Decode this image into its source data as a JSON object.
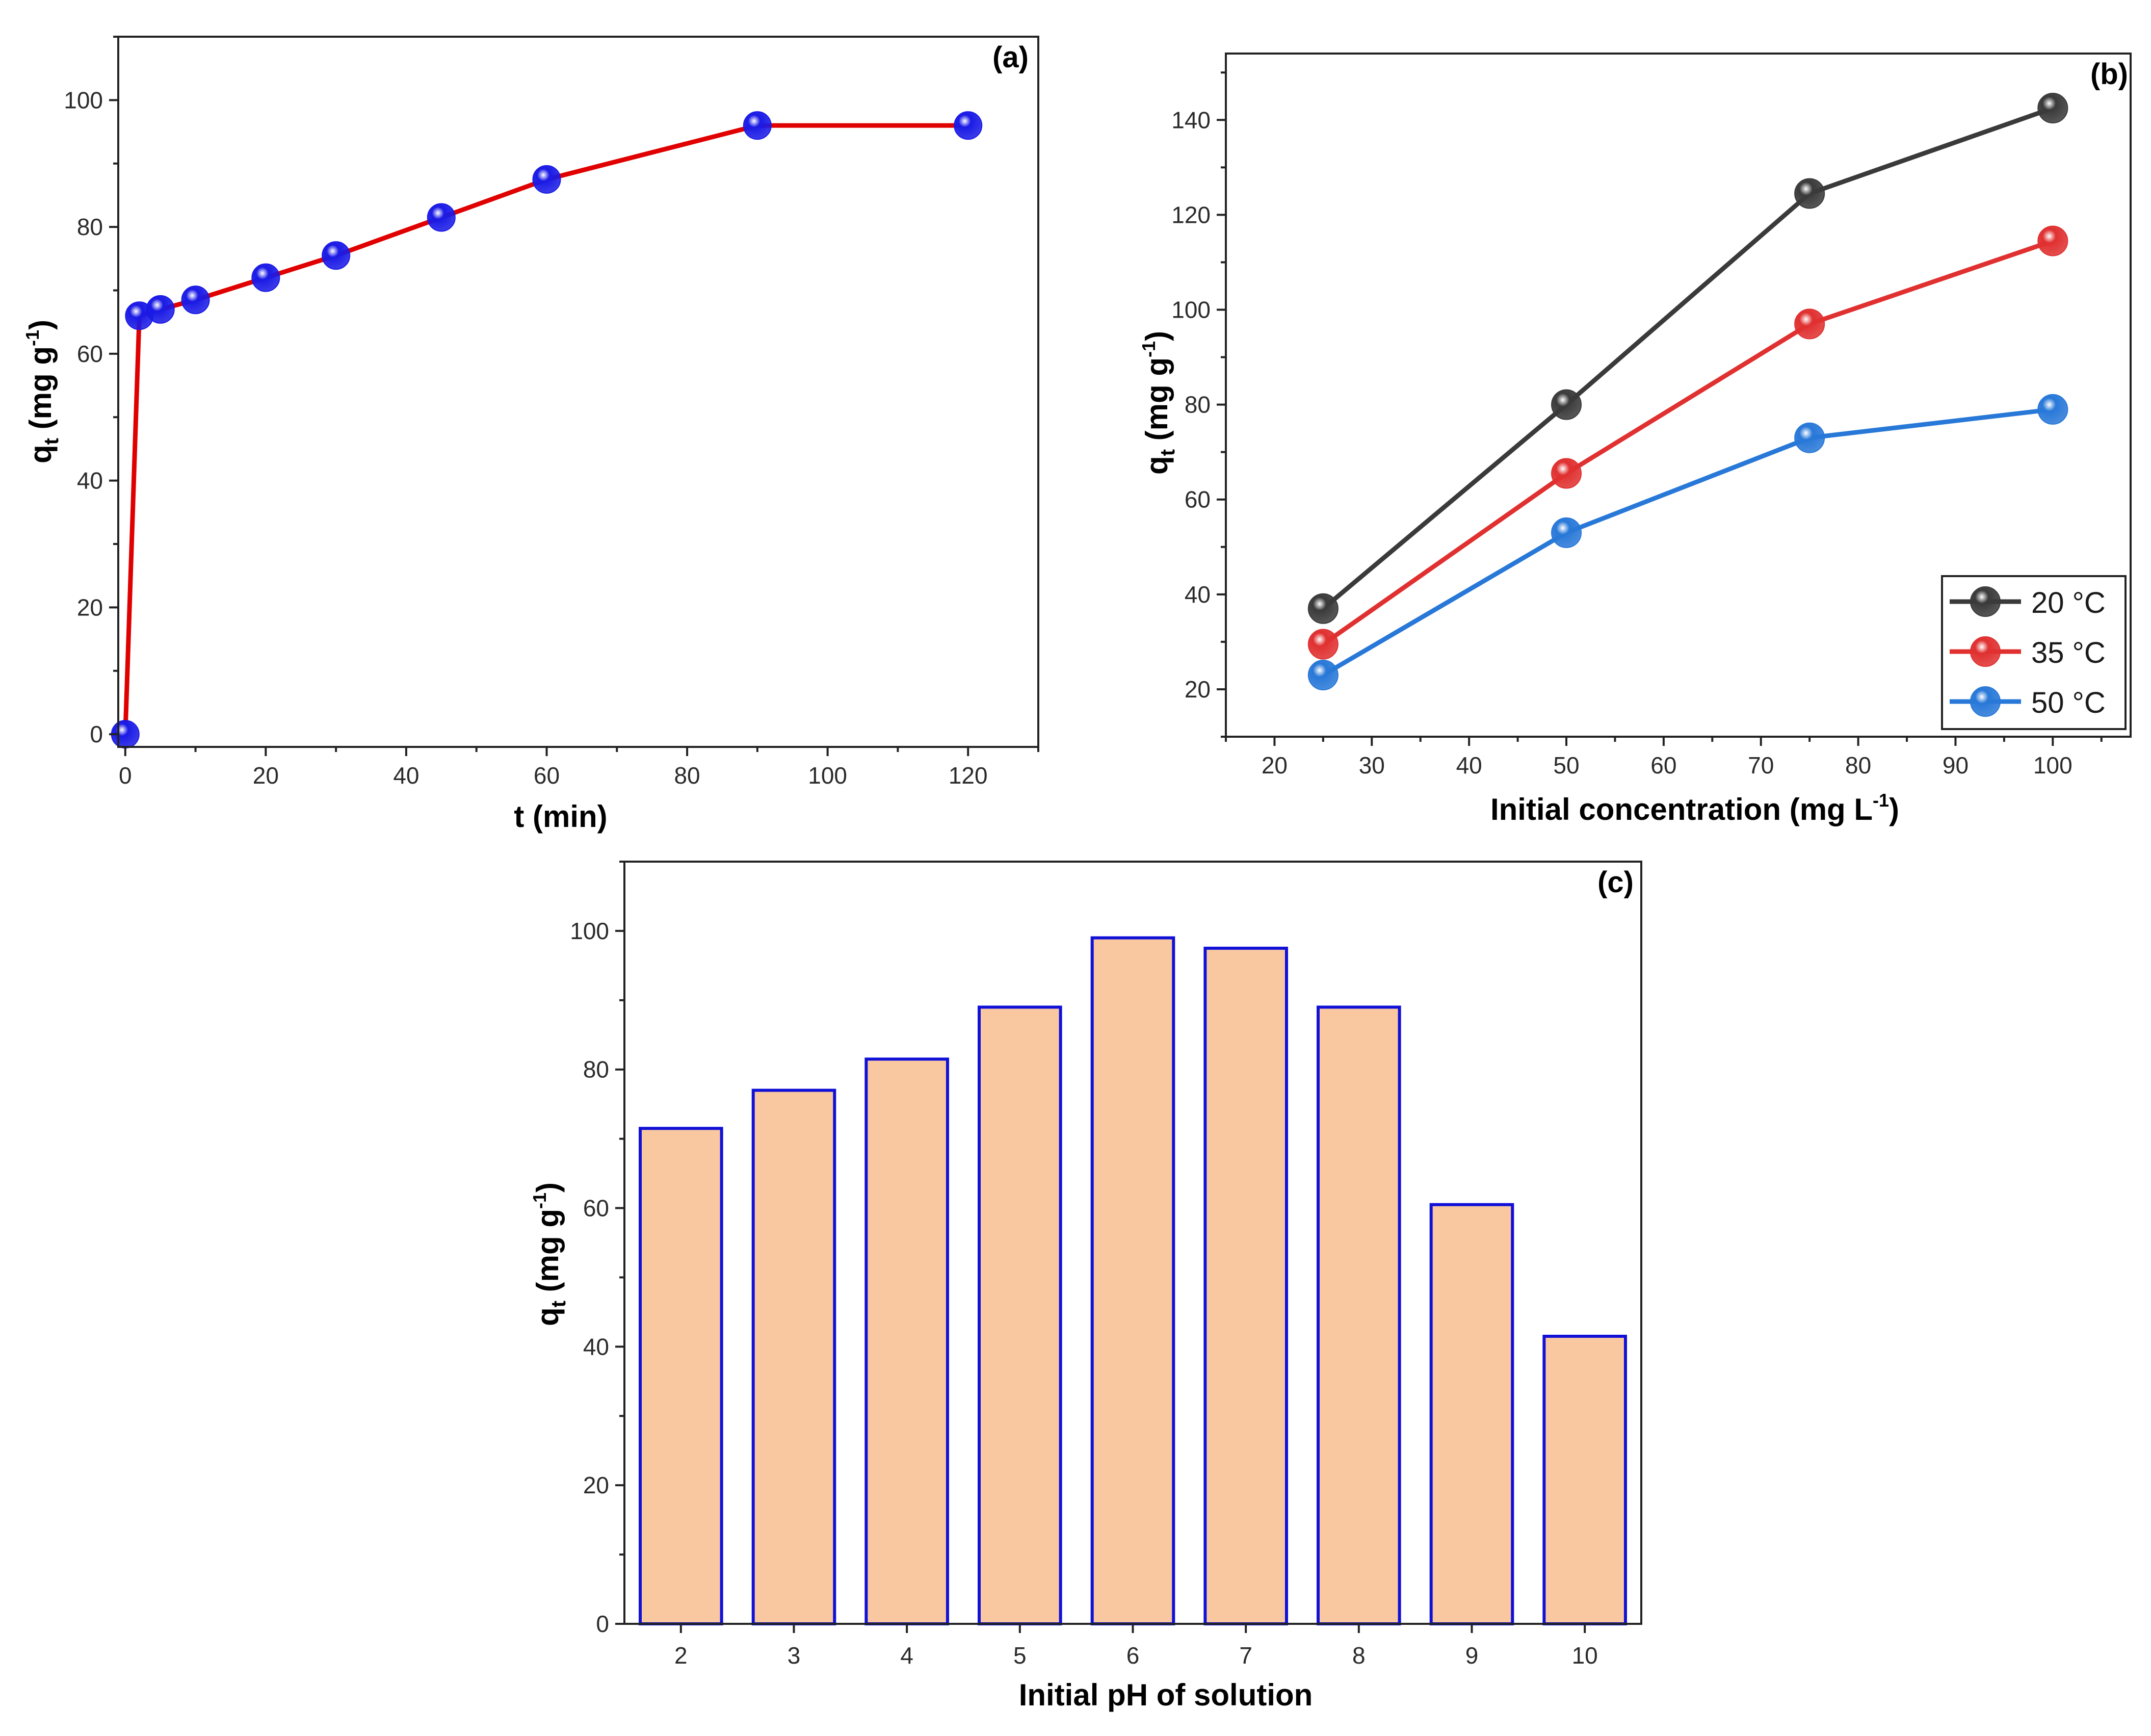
{
  "chart_data": [
    {
      "id": "a",
      "type": "line",
      "panel_label": "(a)",
      "xlabel": "t (min)",
      "ylabel": "q",
      "ylabel_sub": "t",
      "ylabel_unit": " (mg g",
      "ylabel_sup": "-1",
      "ylabel_close": ")",
      "xlim": [
        -1,
        130
      ],
      "ylim": [
        -2,
        110
      ],
      "xticks": [
        0,
        20,
        40,
        60,
        80,
        100,
        120
      ],
      "yticks": [
        0,
        20,
        40,
        60,
        80,
        100
      ],
      "series": [
        {
          "name": "qt",
          "line_color": "#e00000",
          "marker_color": "#1a1ae6",
          "x": [
            0,
            2,
            5,
            10,
            20,
            30,
            45,
            60,
            90,
            120
          ],
          "y": [
            0,
            66,
            67,
            68.5,
            72,
            75.5,
            81.5,
            87.5,
            96,
            96
          ]
        }
      ]
    },
    {
      "id": "b",
      "type": "line",
      "panel_label": "(b)",
      "xlabel": "Initial concentration (mg L",
      "xlabel_sup": "-1",
      "xlabel_close": ")",
      "ylabel": "q",
      "ylabel_sub": "t",
      "ylabel_unit": " (mg g",
      "ylabel_sup": "-1",
      "ylabel_close": ")",
      "xlim": [
        15,
        108
      ],
      "ylim": [
        10,
        154
      ],
      "xticks": [
        20,
        30,
        40,
        50,
        60,
        70,
        80,
        90,
        100
      ],
      "yticks": [
        20,
        40,
        60,
        80,
        100,
        120,
        140
      ],
      "legend_position": "bottom-right",
      "series": [
        {
          "name": "20 °C",
          "line_color": "#3a3a3a",
          "marker_color": "#3a3a3a",
          "x": [
            25,
            50,
            75,
            100
          ],
          "y": [
            37,
            80,
            124.5,
            142.5
          ]
        },
        {
          "name": "35 °C",
          "line_color": "#e03030",
          "marker_color": "#e03030",
          "x": [
            25,
            50,
            75,
            100
          ],
          "y": [
            29.5,
            65.5,
            97,
            114.5
          ]
        },
        {
          "name": "50 °C",
          "line_color": "#2878d8",
          "marker_color": "#2878d8",
          "x": [
            25,
            50,
            75,
            100
          ],
          "y": [
            23,
            53,
            73,
            79
          ]
        }
      ]
    },
    {
      "id": "c",
      "type": "bar",
      "panel_label": "(c)",
      "xlabel": "Initial pH of solution",
      "ylabel": "q",
      "ylabel_sub": "t",
      "ylabel_unit": " (mg g",
      "ylabel_sup": "-1",
      "ylabel_close": ")",
      "ylim": [
        0,
        110
      ],
      "yticks": [
        0,
        20,
        40,
        60,
        80,
        100
      ],
      "bar_fill": "#fac8a0",
      "bar_edge": "#1010d8",
      "categories": [
        "2",
        "3",
        "4",
        "5",
        "6",
        "7",
        "8",
        "9",
        "10"
      ],
      "values": [
        71.5,
        77,
        81.5,
        89,
        99,
        97.5,
        89,
        60.5,
        41.5
      ]
    }
  ]
}
